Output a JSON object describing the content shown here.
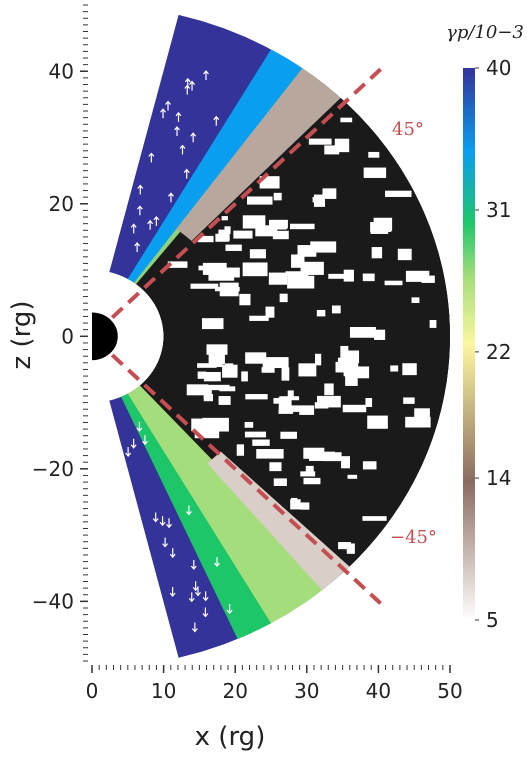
{
  "chart_data": {
    "type": "wedge",
    "x_label": "x (rg)",
    "y_label": "z (rg)",
    "xlim": [
      0,
      50
    ],
    "ylim": [
      -49,
      50
    ],
    "xticks": [
      0,
      10,
      20,
      30,
      40,
      50
    ],
    "yticks": [
      {
        "value": -40,
        "label": "−40"
      },
      {
        "value": -20,
        "label": "−20"
      },
      0,
      20,
      40
    ],
    "colorbar": {
      "label": "γp/10−3",
      "lim": [
        5,
        40
      ],
      "ticks": [
        5,
        14,
        22,
        31,
        40
      ]
    },
    "annotations": [
      "45°",
      "−45°"
    ]
  }
}
